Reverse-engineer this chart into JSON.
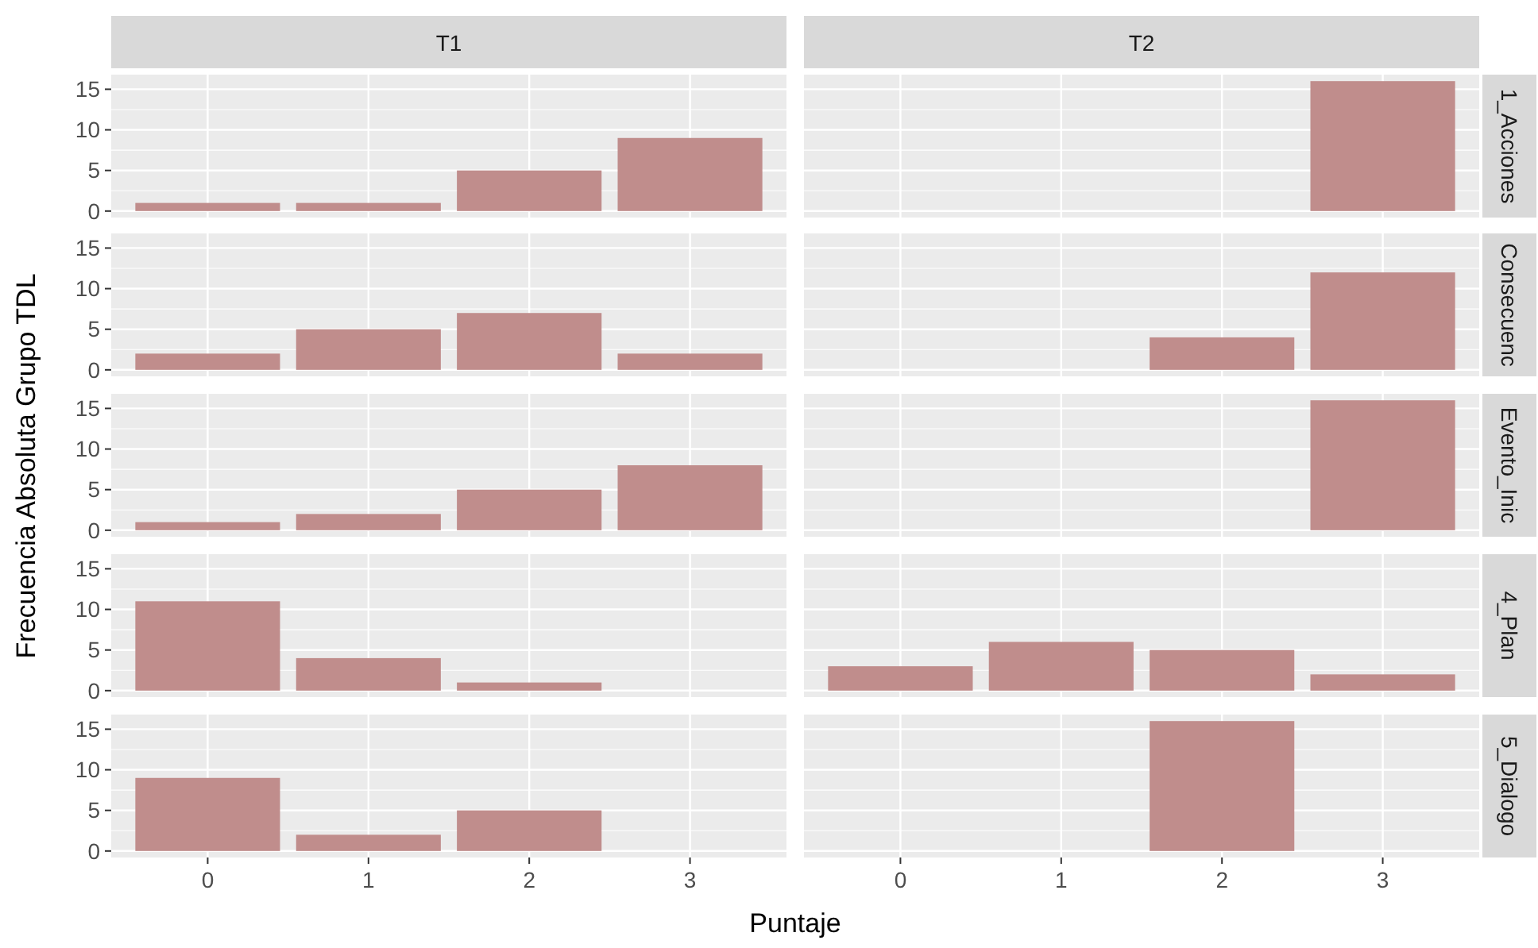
{
  "chart_data": [
    {
      "type": "bar",
      "title": "T1",
      "categories": [
        "0",
        "1",
        "2",
        "3"
      ],
      "values": [
        1,
        1,
        5,
        9
      ],
      "color": "#c08d8c",
      "ylim": [
        -0.8,
        16.8
      ],
      "yticks": [
        0,
        5,
        10,
        15
      ],
      "grid": true,
      "tick_labels": "y"
    },
    {
      "type": "bar",
      "title": "T2",
      "y2label": "1_Acciones",
      "categories": [
        "0",
        "1",
        "2",
        "3"
      ],
      "values": [
        null,
        null,
        null,
        16
      ],
      "color": "#c08d8c",
      "ylim": [
        -0.8,
        16.8
      ],
      "yticks": [
        0,
        5,
        10,
        15
      ],
      "grid": true,
      "tick_labels": false
    },
    {
      "type": "bar",
      "categories": [
        "0",
        "1",
        "2",
        "3"
      ],
      "values": [
        2,
        5,
        7,
        2
      ],
      "color": "#c08d8c",
      "ylim": [
        -0.8,
        16.8
      ],
      "yticks": [
        0,
        5,
        10,
        15
      ],
      "grid": true,
      "tick_labels": "y"
    },
    {
      "type": "bar",
      "y2label": "Consecuenc",
      "categories": [
        "0",
        "1",
        "2",
        "3"
      ],
      "values": [
        null,
        null,
        4,
        12
      ],
      "color": "#c08d8c",
      "ylim": [
        -0.8,
        16.8
      ],
      "yticks": [
        0,
        5,
        10,
        15
      ],
      "grid": true,
      "tick_labels": false
    },
    {
      "type": "bar",
      "ylabel": "Frecuencia Absoluta Grupo TDL",
      "categories": [
        "0",
        "1",
        "2",
        "3"
      ],
      "values": [
        1,
        2,
        5,
        8
      ],
      "color": "#c08d8c",
      "ylim": [
        -0.8,
        16.8
      ],
      "yticks": [
        0,
        5,
        10,
        15
      ],
      "grid": true,
      "tick_labels": "y"
    },
    {
      "type": "bar",
      "y2label": "Evento_Inic",
      "categories": [
        "0",
        "1",
        "2",
        "3"
      ],
      "values": [
        null,
        null,
        null,
        16
      ],
      "color": "#c08d8c",
      "ylim": [
        -0.8,
        16.8
      ],
      "yticks": [
        0,
        5,
        10,
        15
      ],
      "grid": true,
      "tick_labels": false
    },
    {
      "type": "bar",
      "categories": [
        "0",
        "1",
        "2",
        "3"
      ],
      "values": [
        11,
        4,
        1,
        null
      ],
      "color": "#c08d8c",
      "ylim": [
        -0.8,
        16.8
      ],
      "yticks": [
        0,
        5,
        10,
        15
      ],
      "grid": true,
      "tick_labels": "y"
    },
    {
      "type": "bar",
      "y2label": "4_Plan",
      "categories": [
        "0",
        "1",
        "2",
        "3"
      ],
      "values": [
        3,
        6,
        5,
        2
      ],
      "color": "#c08d8c",
      "ylim": [
        -0.8,
        16.8
      ],
      "yticks": [
        0,
        5,
        10,
        15
      ],
      "grid": true,
      "tick_labels": false
    },
    {
      "type": "bar",
      "xlabel": "Puntaje",
      "categories": [
        "0",
        "1",
        "2",
        "3"
      ],
      "values": [
        9,
        2,
        5,
        null
      ],
      "color": "#c08d8c",
      "ylim": [
        -0.8,
        16.8
      ],
      "yticks": [
        0,
        5,
        10,
        15
      ],
      "grid": true
    },
    {
      "type": "bar",
      "y2label": "5_Dialogo",
      "categories": [
        "0",
        "1",
        "2",
        "3"
      ],
      "values": [
        null,
        null,
        16,
        null
      ],
      "color": "#c08d8c",
      "ylim": [
        -0.8,
        16.8
      ],
      "yticks": [
        0,
        5,
        10,
        15
      ],
      "grid": true,
      "tick_labels": "x"
    }
  ]
}
